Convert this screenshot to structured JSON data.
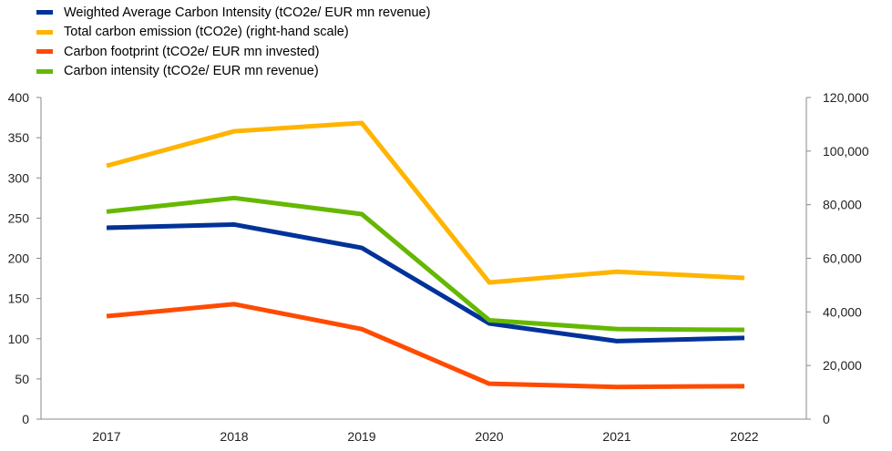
{
  "chart_data": {
    "type": "line",
    "categories": [
      "2017",
      "2018",
      "2019",
      "2020",
      "2021",
      "2022"
    ],
    "left_axis": {
      "ylim": [
        0,
        400
      ],
      "ticks": [
        "0",
        "50",
        "100",
        "150",
        "200",
        "250",
        "300",
        "350",
        "400"
      ]
    },
    "right_axis": {
      "ylim": [
        0,
        120000
      ],
      "ticks": [
        "0",
        "20,000",
        "40,000",
        "60,000",
        "80,000",
        "100,000",
        "120,000"
      ]
    },
    "series": [
      {
        "name": "Weighted Average Carbon Intensity (tCO2e/ EUR mn revenue)",
        "color": "#003299",
        "axis": "left",
        "values": [
          238,
          242,
          213,
          119,
          97,
          101
        ]
      },
      {
        "name": "Total carbon emission (tCO2e)  (right-hand scale)",
        "color": "#FFB400",
        "axis": "right",
        "values": [
          94500,
          107400,
          110500,
          51000,
          55000,
          52700
        ]
      },
      {
        "name": "Carbon footprint (tCO2e/ EUR mn invested)",
        "color": "#FF4B00",
        "axis": "left",
        "values": [
          128,
          143,
          112,
          44,
          40,
          41
        ]
      },
      {
        "name": "Carbon intensity (tCO2e/ EUR mn revenue)",
        "color": "#65B800",
        "axis": "left",
        "values": [
          258,
          275,
          255,
          123,
          112,
          111
        ]
      }
    ],
    "grid": false,
    "legend": "top-left"
  }
}
